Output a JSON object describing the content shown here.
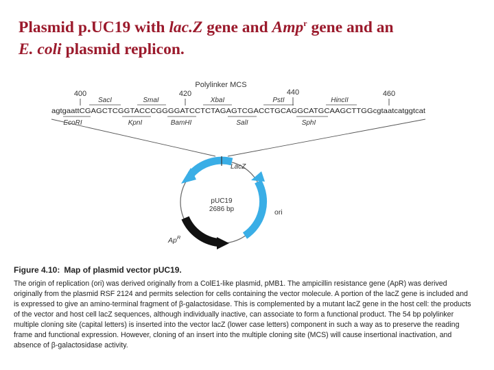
{
  "slide": {
    "title": {
      "line1_a": "Plasmid p.UC19 with ",
      "lacZ": "lac.Z",
      "line1_b": " gene and ",
      "amp": "Amp",
      "amp_sup": "r",
      "line1_c": " gene and an",
      "ecoli": "E. coli",
      "line2_b": " plasmid replicon."
    }
  },
  "mcs": {
    "header": "Polylinker MCS",
    "positions": [
      "400",
      "420",
      "440",
      "460"
    ],
    "sites_top": [
      "SacI",
      "SmaI",
      "XbaI",
      "PstI",
      "HincII"
    ],
    "sites_bottom": [
      "EcoRI",
      "KpnI",
      "BamHI",
      "SalI",
      "SphI"
    ],
    "sequence": "agtgaattCGAGCTCGGTACCCGGGGATCCTCTAGAGTCGACCTGCAGGCATGCAAGCTTGGcgtaatcatggtcat"
  },
  "plasmid": {
    "name": "pUC19",
    "size": "2686 bp",
    "lacZ_label": "LacZ",
    "ori_label": "ori",
    "amp_label": "Ap",
    "amp_sup": "R",
    "colors": {
      "lacZ": "#3aaee6",
      "ori": "#3aaee6",
      "amp": "#111111",
      "ring": "#6d6d6d"
    }
  },
  "caption": {
    "figure_label": "Figure 4.10:",
    "figure_title": "Map of plasmid vector pUC19.",
    "text": "The origin of replication (ori) was derived originally from a ColE1-like plasmid, pMB1. The ampicillin resistance gene (ApR) was derived originally from the plasmid RSF 2124 and permits selection for cells containing the vector molecule. A portion of the lacZ gene is included and is expressed to give an amino-terminal fragment of β-galactosidase. This is complemented by a mutant lacZ gene in the host cell: the products of the vector and host cell lacZ sequences, although individually inactive, can associate to form a functional product. The 54 bp polylinker multiple cloning site (capital letters) is inserted into the vector lacZ (lower case letters) component in such a way as to preserve the reading frame and functional expression. However, cloning of an insert into the multiple cloning site (MCS) will cause insertional inactivation, and absence of β-galactosidase activity."
  }
}
